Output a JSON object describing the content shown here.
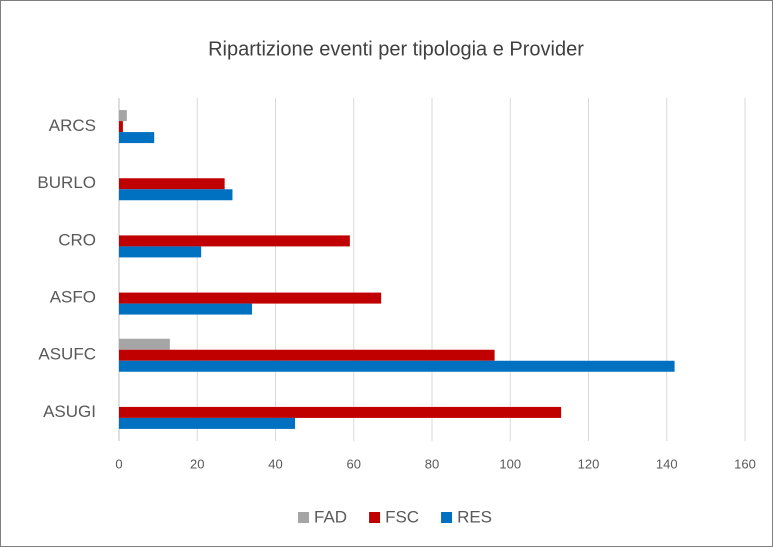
{
  "chart_data": {
    "type": "barh",
    "title": "Ripartizione eventi per tipologia e Provider",
    "categories": [
      "ARCS",
      "BURLO",
      "CRO",
      "ASFO",
      "ASUFC",
      "ASUGI"
    ],
    "series": [
      {
        "name": "FAD",
        "color": "#a5a5a5",
        "values": [
          2,
          0,
          0,
          0,
          13,
          0
        ]
      },
      {
        "name": "FSC",
        "color": "#c00000",
        "values": [
          1,
          27,
          59,
          67,
          96,
          113
        ]
      },
      {
        "name": "RES",
        "color": "#0070c0",
        "values": [
          9,
          29,
          21,
          34,
          142,
          45
        ]
      }
    ],
    "xlim": [
      0,
      160
    ],
    "xticks": [
      0,
      20,
      40,
      60,
      80,
      100,
      120,
      140,
      160
    ],
    "grid": true,
    "legend": "bottom"
  }
}
